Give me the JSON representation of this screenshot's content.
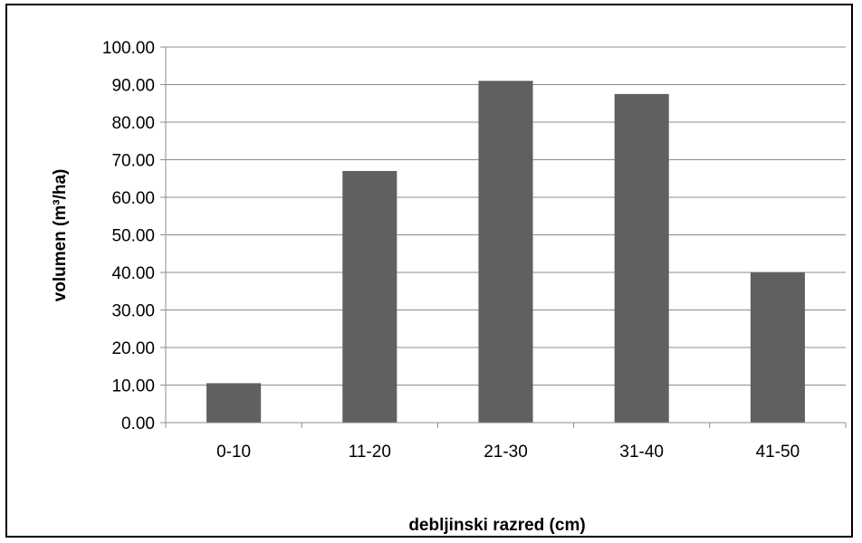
{
  "chart_data": {
    "type": "bar",
    "title": "",
    "xlabel": "debljinski razred (cm)",
    "ylabel": "volumen (m³/ha)",
    "categories": [
      "0-10",
      "11-20",
      "21-30",
      "31-40",
      "41-50"
    ],
    "values": [
      10.5,
      67.0,
      91.0,
      87.5,
      40.0
    ],
    "ylim": [
      0,
      100
    ],
    "yticks": [
      "0.00",
      "10.00",
      "20.00",
      "30.00",
      "40.00",
      "50.00",
      "60.00",
      "70.00",
      "80.00",
      "90.00",
      "100.00"
    ],
    "grid": true,
    "legend": "none",
    "bar_color": "#606060"
  }
}
